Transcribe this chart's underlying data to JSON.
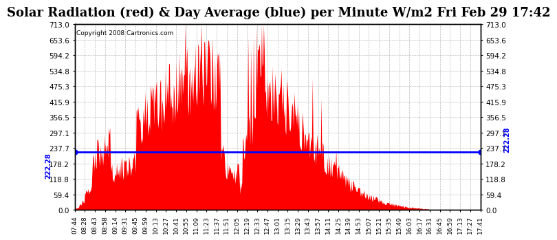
{
  "title": "Solar Radiation (red) & Day Average (blue) per Minute W/m2 Fri Feb 29 17:42",
  "copyright": "Copyright 2008 Cartronics.com",
  "ymin": 0.0,
  "ymax": 713.0,
  "ytick_labels": [
    "0.0",
    "59.4",
    "118.8",
    "178.2",
    "237.7",
    "297.1",
    "356.5",
    "415.9",
    "475.3",
    "534.8",
    "594.2",
    "653.6",
    "713.0"
  ],
  "ytick_values": [
    0.0,
    59.4,
    118.8,
    178.2,
    237.7,
    297.1,
    356.5,
    415.9,
    475.3,
    534.8,
    594.2,
    653.6,
    713.0
  ],
  "day_average": 222.28,
  "background_color": "#ffffff",
  "plot_bg_color": "#ffffff",
  "fill_color": "#ff0000",
  "avg_line_color": "#0000ff",
  "grid_color": "#aaaaaa",
  "grid_style": "--",
  "title_fontsize": 13,
  "xtick_labels": [
    "07:44",
    "08:28",
    "08:43",
    "08:58",
    "09:14",
    "09:31",
    "09:45",
    "09:59",
    "10:13",
    "10:27",
    "10:41",
    "10:55",
    "11:09",
    "11:23",
    "11:37",
    "11:51",
    "12:05",
    "12:19",
    "12:33",
    "12:47",
    "13:01",
    "13:15",
    "13:29",
    "13:43",
    "13:57",
    "14:11",
    "14:25",
    "14:39",
    "14:53",
    "15:07",
    "15:21",
    "15:35",
    "15:49",
    "16:03",
    "16:17",
    "16:31",
    "16:45",
    "16:59",
    "17:13",
    "17:27",
    "17:41"
  ],
  "n_points": 600,
  "random_seed": 42
}
